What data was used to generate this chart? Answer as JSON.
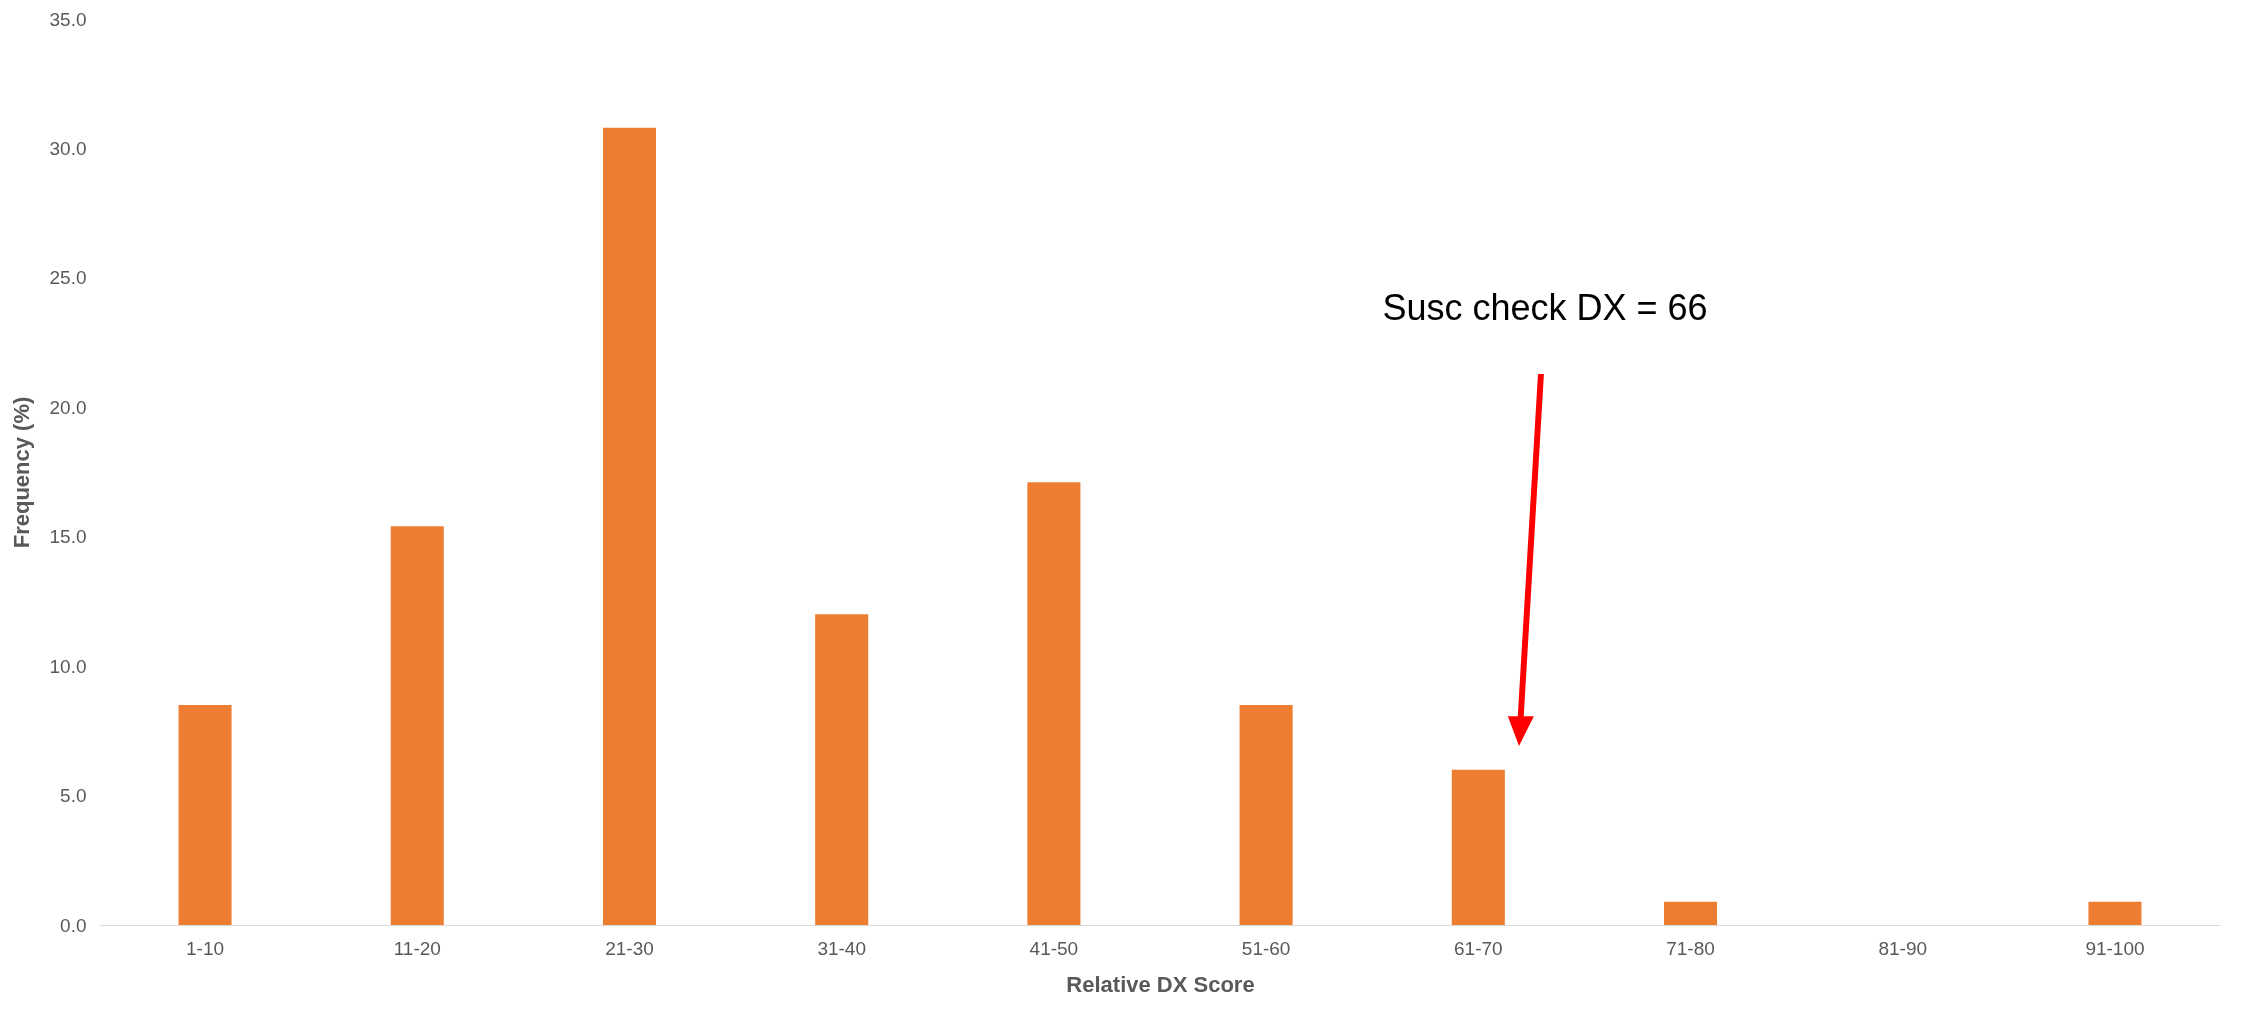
{
  "chart_data": {
    "type": "bar",
    "xlabel": "Relative DX Score",
    "ylabel": "Frequency (%)",
    "categories": [
      "1-10",
      "11-20",
      "21-30",
      "31-40",
      "41-50",
      "51-60",
      "61-70",
      "71-80",
      "81-90",
      "91-100"
    ],
    "values": [
      8.5,
      15.4,
      30.8,
      12.0,
      17.1,
      8.5,
      6.0,
      0.9,
      0,
      0.9
    ],
    "color": "#ed7d31",
    "ylim": [
      0,
      35
    ],
    "yticks": [
      {
        "value": 0,
        "label": "0.0"
      },
      {
        "value": 5,
        "label": "5.0"
      },
      {
        "value": 10,
        "label": "10.0"
      },
      {
        "value": 15,
        "label": "15.0"
      },
      {
        "value": 20,
        "label": "20.0"
      },
      {
        "value": 25,
        "label": "25.0"
      },
      {
        "value": 30,
        "label": "30.0"
      },
      {
        "value": 35,
        "label": "35.0"
      }
    ],
    "grid": false,
    "annotations": [
      "Susc check DX = 66"
    ]
  }
}
